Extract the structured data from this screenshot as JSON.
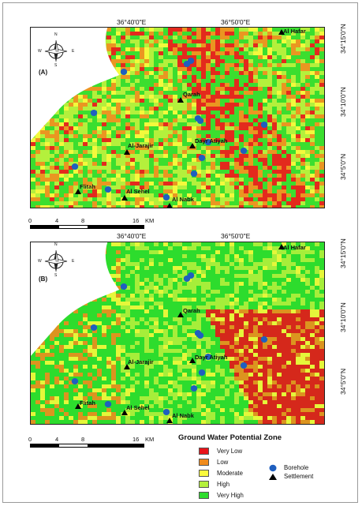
{
  "coordinates": {
    "lon_labels": [
      "36°40'0\"E",
      "36°50'0\"E"
    ],
    "lat_labels": [
      "34°15'0\"N",
      "34°10'0\"N",
      "34°5'0\"N"
    ]
  },
  "panels": [
    {
      "label": "(A)"
    },
    {
      "label": "(B)"
    }
  ],
  "settlements": [
    {
      "name": "Al Hafar"
    },
    {
      "name": "Qarah"
    },
    {
      "name": "Al-Jarajir"
    },
    {
      "name": "Dayr Atiyah"
    },
    {
      "name": "Flitah"
    },
    {
      "name": "Al Sehel"
    },
    {
      "name": "Al Nabk"
    }
  ],
  "north_arrow": {
    "n": "N",
    "s": "S",
    "e": "E",
    "w": "W"
  },
  "scale_bar": {
    "ticks": [
      "0",
      "4",
      "8",
      "16"
    ],
    "unit": "KM"
  },
  "legend": {
    "title": "Ground Water Potential Zone",
    "zones": [
      {
        "label": "Very Low",
        "color": "#e8141a"
      },
      {
        "label": "Low",
        "color": "#f08c1e"
      },
      {
        "label": "Moderate",
        "color": "#fafa3c"
      },
      {
        "label": "High",
        "color": "#b4f03c"
      },
      {
        "label": "Very High",
        "color": "#2ddc2d"
      }
    ],
    "symbols": [
      {
        "label": "Borehole",
        "color": "#1f5fbf",
        "icon": "blue-dot"
      },
      {
        "label": "Settlement",
        "color": "#000000",
        "icon": "black-triangle"
      }
    ]
  }
}
